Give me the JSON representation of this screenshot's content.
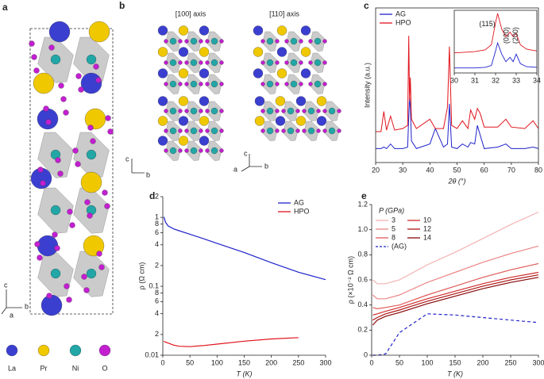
{
  "panel_labels": [
    "a",
    "b",
    "c",
    "d",
    "e"
  ],
  "structure_a": {
    "legend": [
      "La",
      "Pr",
      "Ni",
      "O"
    ],
    "atom_colors": [
      "#3b3fd0",
      "#f0c800",
      "#22a6a6",
      "#c21fd0"
    ],
    "axes": [
      "c",
      "b",
      "a"
    ]
  },
  "structure_b": {
    "views": [
      "[100] axis",
      "[110] axis"
    ],
    "axes_100": [
      "c",
      "b"
    ],
    "axes_110": [
      "c",
      "a",
      "b"
    ]
  },
  "chart_data": [
    {
      "type": "line",
      "xlabel": "2θ (°)",
      "ylabel": "Intensity (a.u.)",
      "frame": true,
      "legend": "upper left",
      "x": [
        20,
        22,
        23,
        24,
        25.5,
        27,
        30,
        31.8,
        32.2,
        32.5,
        32.8,
        33.2,
        35,
        40,
        42,
        45,
        46.5,
        47.2,
        48,
        50,
        52,
        54,
        55,
        56.5,
        57.5,
        58.5,
        60,
        65,
        68,
        70,
        75,
        78,
        80
      ],
      "xlim": [
        20,
        80
      ],
      "ylim": [
        0,
        100
      ],
      "xticks": [
        20,
        30,
        40,
        50,
        60,
        70,
        80
      ],
      "series": [
        {
          "name": "AG",
          "color": "#1f22c9",
          "values": [
            9,
            9,
            10,
            9,
            12,
            9,
            9,
            10,
            30,
            42,
            36,
            14,
            9,
            12,
            22,
            10,
            12,
            38,
            10,
            9,
            12,
            10,
            13,
            12,
            24,
            18,
            9,
            10,
            12,
            9,
            9,
            10,
            9
          ]
        },
        {
          "name": "HPO",
          "color": "#e0141c",
          "values": [
            20,
            20,
            33,
            21,
            30,
            21,
            22,
            24,
            82,
            40,
            55,
            28,
            22,
            28,
            22,
            22,
            36,
            75,
            24,
            22,
            27,
            22,
            34,
            28,
            35,
            32,
            23,
            23,
            28,
            23,
            22,
            27,
            22
          ]
        }
      ]
    },
    {
      "type": "line",
      "frame": true,
      "annotations": [
        "(115)",
        "(020)",
        "(200)"
      ],
      "x": [
        30,
        30.5,
        31,
        31.5,
        31.8,
        32.0,
        32.1,
        32.3,
        32.5,
        32.7,
        32.85,
        33.0,
        33.2,
        33.5,
        34
      ],
      "xlim": [
        30,
        34
      ],
      "ylim": [
        0,
        100
      ],
      "xticks": [
        30,
        31,
        32,
        33,
        34
      ],
      "series": [
        {
          "color": "#1f22c9",
          "values": [
            8,
            8,
            8,
            9,
            12,
            35,
            48,
            30,
            18,
            25,
            18,
            30,
            15,
            10,
            9
          ]
        },
        {
          "color": "#e0141c",
          "values": [
            32,
            33,
            34,
            37,
            45,
            80,
            95,
            70,
            58,
            65,
            58,
            63,
            45,
            38,
            35
          ]
        }
      ]
    },
    {
      "type": "line",
      "xlabel": "T (K)",
      "ylabel": "ρ (Ω cm)",
      "log": true,
      "legend": "upper right",
      "x": [
        2,
        5,
        10,
        20,
        30,
        50,
        75,
        100,
        150,
        200,
        250,
        300
      ],
      "xlim": [
        0,
        300
      ],
      "ylim": [
        0.01,
        2
      ],
      "xticks": [
        0,
        50,
        100,
        150,
        200,
        250,
        300
      ],
      "yticks": [
        0.01,
        {
          "value": 0.02,
          "label": "2"
        },
        {
          "value": 0.04,
          "label": "4"
        },
        {
          "value": 0.06,
          "label": "6"
        },
        {
          "value": 0.08,
          "label": "8"
        },
        0.1,
        {
          "value": 0.2,
          "label": "2"
        },
        {
          "value": 0.4,
          "label": "4"
        },
        {
          "value": 0.6,
          "label": "6"
        },
        {
          "value": 0.8,
          "label": "8"
        },
        1,
        2
      ],
      "series": [
        {
          "name": "AG",
          "color": "#1f22c9",
          "values": [
            1.02,
            0.85,
            0.75,
            0.68,
            0.64,
            0.57,
            0.49,
            0.42,
            0.31,
            0.22,
            0.16,
            0.125
          ]
        },
        {
          "name": "HPO",
          "color": "#e0141c",
          "values": [
            0.016,
            0.0155,
            0.015,
            0.014,
            0.0135,
            0.0133,
            0.0138,
            0.0145,
            0.016,
            0.0172,
            0.018,
            null
          ]
        }
      ]
    },
    {
      "type": "line",
      "xlabel": "T (K)",
      "ylabel": "ρ (×10⁻² Ω cm)",
      "legend": "upper left",
      "legend_title": "P (GPa)",
      "x": [
        2,
        10,
        25,
        50,
        100,
        150,
        200,
        250,
        300
      ],
      "xlim": [
        0,
        300
      ],
      "ylim": [
        0,
        1.2
      ],
      "xticks": [
        0,
        50,
        100,
        150,
        200,
        250,
        300
      ],
      "yticks": [
        0,
        0.2,
        0.4,
        0.6,
        0.8,
        {
          "value": 1,
          "label": "1.0"
        },
        1.2
      ],
      "series": [
        {
          "name": "3",
          "color": "#f4b3b3",
          "values": [
            0.6,
            0.57,
            0.57,
            0.6,
            0.72,
            0.82,
            0.93,
            1.04,
            1.14
          ]
        },
        {
          "name": "5",
          "color": "#ec8686",
          "values": [
            0.48,
            0.45,
            0.45,
            0.48,
            0.58,
            0.66,
            0.74,
            0.81,
            0.87
          ]
        },
        {
          "name": "8",
          "color": "#e05a5a",
          "values": [
            0.38,
            0.37,
            0.38,
            0.4,
            0.48,
            0.55,
            0.62,
            0.68,
            0.73
          ]
        },
        {
          "name": "10",
          "color": "#cf2d2d",
          "values": [
            0.32,
            0.33,
            0.35,
            0.38,
            0.45,
            0.51,
            0.57,
            0.62,
            0.66
          ]
        },
        {
          "name": "12",
          "color": "#ad1616",
          "values": [
            0.28,
            0.3,
            0.33,
            0.36,
            0.43,
            0.49,
            0.55,
            0.6,
            0.64
          ]
        },
        {
          "name": "14",
          "color": "#870909",
          "values": [
            0.24,
            0.28,
            0.31,
            0.34,
            0.41,
            0.47,
            0.53,
            0.58,
            0.62
          ]
        },
        {
          "name": "(AG)",
          "color": "#1f22c9",
          "dash": true,
          "values": [
            0,
            0,
            0.01,
            0.18,
            0.33,
            0.32,
            0.3,
            0.28,
            0.26
          ]
        }
      ]
    }
  ]
}
